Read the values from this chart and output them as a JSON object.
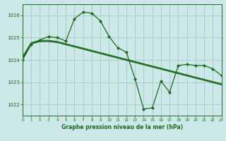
{
  "background_color": "#cce8e8",
  "grid_color": "#aacccc",
  "line_color": "#1a6b1a",
  "title": "Graphe pression niveau de la mer (hPa)",
  "xlim": [
    0,
    23
  ],
  "ylim": [
    1021.5,
    1026.5
  ],
  "yticks": [
    1022,
    1023,
    1024,
    1025,
    1026
  ],
  "xticks": [
    0,
    1,
    2,
    3,
    4,
    5,
    6,
    7,
    8,
    9,
    10,
    11,
    12,
    13,
    14,
    15,
    16,
    17,
    18,
    19,
    20,
    21,
    22,
    23
  ],
  "series1_x": [
    0,
    1,
    2,
    3,
    4,
    5,
    6,
    7,
    8,
    9,
    10,
    11,
    12,
    13,
    14,
    15,
    16,
    17,
    18,
    19,
    20,
    21,
    22,
    23
  ],
  "series1_y": [
    1024.0,
    1024.7,
    1024.9,
    1025.05,
    1025.0,
    1024.85,
    1025.85,
    1026.15,
    1026.1,
    1025.75,
    1025.05,
    1024.55,
    1024.35,
    1023.15,
    1021.8,
    1021.85,
    1023.05,
    1022.55,
    1023.75,
    1023.8,
    1023.75,
    1023.75,
    1023.6,
    1023.3
  ],
  "series2_x": [
    0,
    1,
    2,
    3,
    4,
    5,
    6,
    7,
    8,
    9,
    10,
    11,
    12,
    13,
    14,
    15,
    16,
    17,
    18,
    19,
    20,
    21,
    22,
    23
  ],
  "series2_y": [
    1024.05,
    1024.72,
    1024.82,
    1024.82,
    1024.78,
    1024.68,
    1024.58,
    1024.48,
    1024.38,
    1024.28,
    1024.18,
    1024.08,
    1023.98,
    1023.88,
    1023.78,
    1023.68,
    1023.58,
    1023.48,
    1023.38,
    1023.28,
    1023.18,
    1023.08,
    1022.98,
    1022.88
  ],
  "series3_x": [
    0,
    1,
    2,
    3,
    4,
    5,
    6,
    7,
    8,
    9,
    10,
    11,
    12,
    13,
    14,
    15,
    16,
    17,
    18,
    19,
    20,
    21,
    22,
    23
  ],
  "series3_y": [
    1024.1,
    1024.75,
    1024.85,
    1024.85,
    1024.8,
    1024.7,
    1024.6,
    1024.5,
    1024.4,
    1024.3,
    1024.2,
    1024.1,
    1024.0,
    1023.9,
    1023.8,
    1023.7,
    1023.6,
    1023.5,
    1023.4,
    1023.3,
    1023.2,
    1023.1,
    1023.0,
    1022.9
  ],
  "series4_x": [
    0,
    1,
    2,
    3,
    4,
    5,
    6,
    7,
    8,
    9,
    10,
    11,
    12,
    13,
    14,
    15,
    16,
    17,
    18,
    19,
    20,
    21,
    22,
    23
  ],
  "series4_y": [
    1024.15,
    1024.78,
    1024.88,
    1024.88,
    1024.83,
    1024.73,
    1024.63,
    1024.53,
    1024.43,
    1024.33,
    1024.23,
    1024.13,
    1024.03,
    1023.93,
    1023.83,
    1023.73,
    1023.63,
    1023.53,
    1023.43,
    1023.33,
    1023.23,
    1023.13,
    1023.03,
    1022.93
  ]
}
